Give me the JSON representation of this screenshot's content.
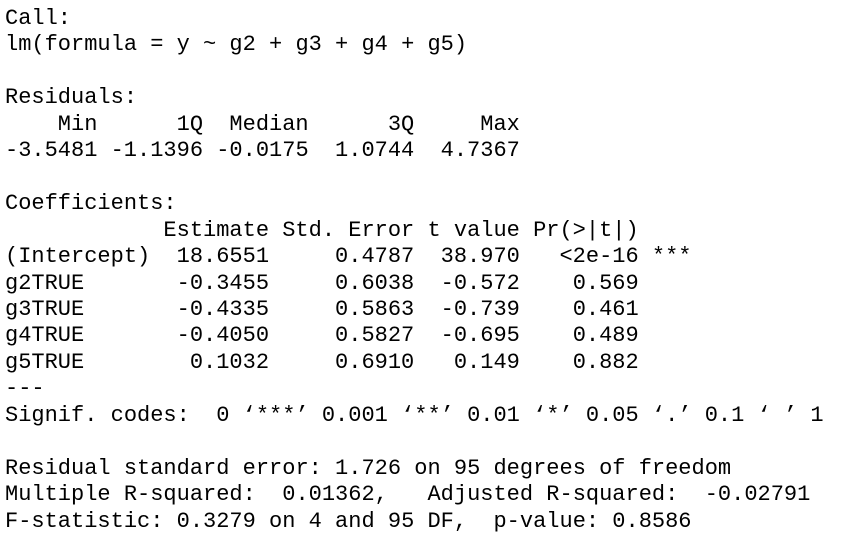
{
  "call": {
    "label": "Call:",
    "formula": "lm(formula = y ~ g2 + g3 + g4 + g5)"
  },
  "residuals": {
    "label": "Residuals:",
    "header": [
      "Min",
      "1Q",
      "Median",
      "3Q",
      "Max"
    ],
    "values": [
      "-3.5481",
      "-1.1396",
      "-0.0175",
      "1.0744",
      "4.7367"
    ]
  },
  "coefficients": {
    "label": "Coefficients:",
    "header": [
      "Estimate",
      "Std. Error",
      "t value",
      "Pr(>|t|)"
    ],
    "rows": [
      [
        "(Intercept)",
        "18.6551",
        "0.4787",
        "38.970",
        "<2e-16",
        "***"
      ],
      [
        "g2TRUE",
        "-0.3455",
        "0.6038",
        "-0.572",
        "0.569"
      ],
      [
        "g3TRUE",
        "-0.4335",
        "0.5863",
        "-0.739",
        "0.461"
      ],
      [
        "g4TRUE",
        "-0.4050",
        "0.5827",
        "-0.695",
        "0.489"
      ],
      [
        "g5TRUE",
        "0.1032",
        "0.6910",
        "0.149",
        "0.882"
      ]
    ],
    "separator": "---",
    "signif": "Signif. codes:  0 ‘***’ 0.001 ‘**’ 0.01 ‘*’ 0.05 ‘.’ 0.1 ‘ ’ 1"
  },
  "summary": [
    "Residual standard error: 1.726 on 95 degrees of freedom",
    "Multiple R-squared:  0.01362,\tAdjusted R-squared:  -0.02791",
    "F-statistic: 0.3279 on 4 and 95 DF,  p-value: 0.8586"
  ]
}
